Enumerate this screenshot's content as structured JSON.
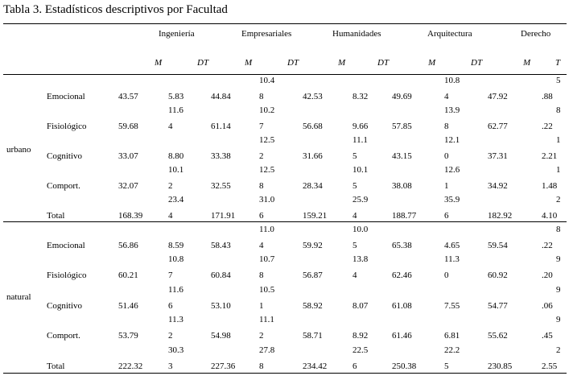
{
  "title": "Tabla 3. Estadísticos descriptivos por Facultad",
  "faculties": [
    "Ingeniería",
    "Empresariales",
    "Humanidades",
    "Arquitectura",
    "Derecho"
  ],
  "sub_headers": [
    "M",
    "DT",
    "M",
    "DT",
    "M",
    "DT",
    "M",
    "DT",
    "M",
    "T"
  ],
  "groups": [
    {
      "label": "urbano",
      "rows": [
        {
          "label": "Emocional",
          "cells": [
            "43.57",
            "5.83",
            "44.84",
            "10.4|8",
            "42.53",
            "8.32",
            "49.69",
            "10.8|4",
            "47.92",
            "5|.88"
          ]
        },
        {
          "label": "Fisiológico",
          "cells": [
            "59.68",
            "11.6|4",
            "61.14",
            "10.2|7",
            "56.68",
            "9.66",
            "57.85",
            "13.9|8",
            "62.77",
            "8|.22"
          ]
        },
        {
          "label": "Cognitivo",
          "cells": [
            "33.07",
            "8.80",
            "33.38",
            "12.5|2",
            "31.66",
            "11.1|5",
            "43.15",
            "12.1|0",
            "37.31",
            "1|2.21"
          ]
        },
        {
          "label": "Comport.",
          "cells": [
            "32.07",
            "10.1|2",
            "32.55",
            "12.5|8",
            "28.34",
            "10.1|5",
            "38.08",
            "12.6|1",
            "34.92",
            "1|1.48"
          ]
        },
        {
          "label": "Total",
          "cells": [
            "168.39",
            "23.4|4",
            "171.91",
            "31.0|6",
            "159.21",
            "25.9|4",
            "188.77",
            "35.9|6",
            "182.92",
            "2|4.10"
          ]
        }
      ]
    },
    {
      "label": "natural",
      "rows": [
        {
          "label": "Emocional",
          "cells": [
            "56.86",
            "8.59",
            "58.43",
            "11.0|4",
            "59.92",
            "10.0|5",
            "65.38",
            "4.65",
            "59.54",
            "8|.22"
          ]
        },
        {
          "label": "Fisiológico",
          "cells": [
            "60.21",
            "10.8|7",
            "60.84",
            "10.7|8",
            "56.87",
            "13.8|4",
            "62.46",
            "11.3|0",
            "60.92",
            "9|.20"
          ]
        },
        {
          "label": "Cognitivo",
          "cells": [
            "51.46",
            "11.6|6",
            "53.10",
            "10.5|1",
            "58.92",
            "8.07",
            "61.08",
            "7.55",
            "54.77",
            "9|.06"
          ]
        },
        {
          "label": "Comport.",
          "cells": [
            "53.79",
            "11.3|2",
            "54.98",
            "11.1|2",
            "58.71",
            "8.92",
            "61.46",
            "6.81",
            "55.62",
            "9|.45"
          ]
        },
        {
          "label": "Total",
          "cells": [
            "222.32",
            "30.3|3",
            "227.36",
            "27.8|8",
            "234.42",
            "22.5|6",
            "250.38",
            "22.2|5",
            "230.85",
            "2|2.55"
          ]
        }
      ]
    }
  ]
}
